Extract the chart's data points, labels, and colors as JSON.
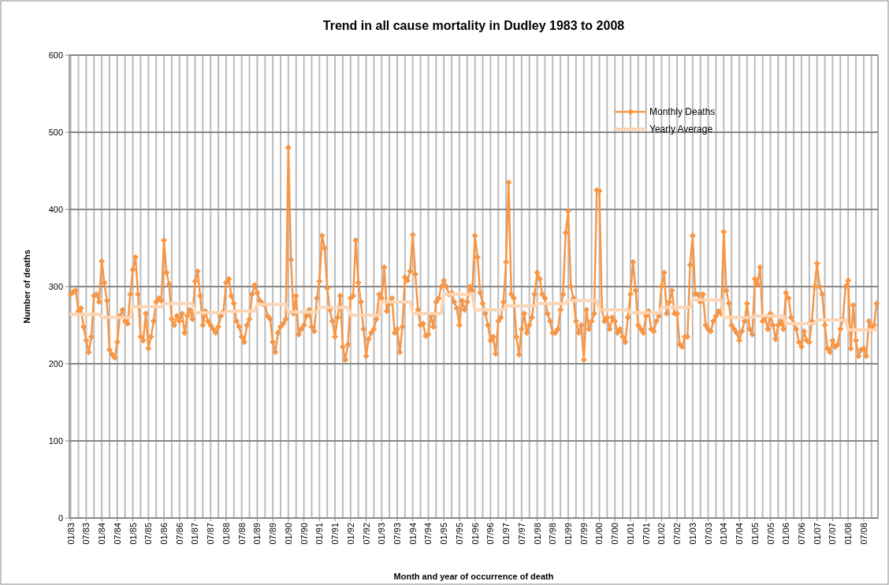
{
  "chart_data": {
    "type": "line",
    "title": "Trend in all cause mortality in Dudley 1983 to 2008",
    "xlabel": "Month and year of occurrence of death",
    "ylabel": "Number of deaths",
    "categories": [
      "01/83",
      null,
      null,
      null,
      null,
      null,
      "07/83",
      null,
      null,
      null,
      null,
      null,
      "01/84",
      null,
      null,
      null,
      null,
      null,
      "07/84",
      null,
      null,
      null,
      null,
      null,
      "01/85",
      null,
      null,
      null,
      null,
      null,
      "07/85",
      null,
      null,
      null,
      null,
      null,
      "01/86",
      null,
      null,
      null,
      null,
      null,
      "07/86",
      null,
      null,
      null,
      null,
      null,
      "01/87",
      null,
      null,
      null,
      null,
      null,
      "07/87",
      null,
      null,
      null,
      null,
      null,
      "01/88",
      null,
      null,
      null,
      null,
      null,
      "07/88",
      null,
      null,
      null,
      null,
      null,
      "01/89",
      null,
      null,
      null,
      null,
      null,
      "07/89",
      null,
      null,
      null,
      null,
      null,
      "01/90",
      null,
      null,
      null,
      null,
      null,
      "07/90",
      null,
      null,
      null,
      null,
      null,
      "01/91",
      null,
      null,
      null,
      null,
      null,
      "07/91",
      null,
      null,
      null,
      null,
      null,
      "01/92",
      null,
      null,
      null,
      null,
      null,
      "07/92",
      null,
      null,
      null,
      null,
      null,
      "01/93",
      null,
      null,
      null,
      null,
      null,
      "07/93",
      null,
      null,
      null,
      null,
      null,
      "01/94",
      null,
      null,
      null,
      null,
      null,
      "07/94",
      null,
      null,
      null,
      null,
      null,
      "01/95",
      null,
      null,
      null,
      null,
      null,
      "07/95",
      null,
      null,
      null,
      null,
      null,
      "01/96",
      null,
      null,
      null,
      null,
      null,
      "07/96",
      null,
      null,
      null,
      null,
      null,
      "01/97",
      null,
      null,
      null,
      null,
      null,
      "07/97",
      null,
      null,
      null,
      null,
      null,
      "01/98",
      null,
      null,
      null,
      null,
      null,
      "07/98",
      null,
      null,
      null,
      null,
      null,
      "01/99",
      null,
      null,
      null,
      null,
      null,
      "07/99",
      null,
      null,
      null,
      null,
      null,
      "01/00",
      null,
      null,
      null,
      null,
      null,
      "07/00",
      null,
      null,
      null,
      null,
      null,
      "01/01",
      null,
      null,
      null,
      null,
      null,
      "07/01",
      null,
      null,
      null,
      null,
      null,
      "01/02",
      null,
      null,
      null,
      null,
      null,
      "07/02",
      null,
      null,
      null,
      null,
      null,
      "01/03",
      null,
      null,
      null,
      null,
      null,
      "07/03",
      null,
      null,
      null,
      null,
      null,
      "01/04",
      null,
      null,
      null,
      null,
      null,
      "07/04",
      null,
      null,
      null,
      null,
      null,
      "01/05",
      null,
      null,
      null,
      null,
      null,
      "07/05",
      null,
      null,
      null,
      null,
      null,
      "01/06",
      null,
      null,
      null,
      null,
      null,
      "07/06",
      null,
      null,
      null,
      null,
      null,
      "01/07",
      null,
      null,
      null,
      null,
      null,
      "07/07",
      null,
      null,
      null,
      null,
      null,
      "01/08",
      null,
      null,
      null,
      null,
      null,
      "07/08",
      null,
      null,
      null,
      null,
      null
    ],
    "series": [
      {
        "name": "Monthly Deaths",
        "color": "#f79646",
        "marker": "diamond",
        "values": [
          290,
          293,
          295,
          268,
          272,
          248,
          230,
          215,
          235,
          288,
          290,
          280,
          333,
          305,
          282,
          218,
          212,
          208,
          228,
          262,
          270,
          255,
          252,
          290,
          322,
          338,
          290,
          235,
          230,
          265,
          220,
          235,
          255,
          280,
          285,
          282,
          360,
          318,
          303,
          258,
          250,
          262,
          255,
          265,
          240,
          262,
          270,
          258,
          307,
          320,
          288,
          250,
          268,
          255,
          250,
          245,
          240,
          248,
          262,
          268,
          305,
          310,
          288,
          278,
          255,
          248,
          235,
          228,
          250,
          258,
          290,
          302,
          292,
          282,
          278,
          276,
          262,
          258,
          228,
          215,
          240,
          248,
          252,
          258,
          480,
          335,
          265,
          288,
          238,
          245,
          250,
          262,
          270,
          248,
          242,
          285,
          307,
          366,
          350,
          298,
          270,
          255,
          235,
          260,
          288,
          222,
          205,
          225,
          285,
          288,
          360,
          305,
          280,
          245,
          210,
          232,
          240,
          245,
          258,
          290,
          285,
          325,
          268,
          278,
          285,
          240,
          245,
          215,
          248,
          312,
          308,
          320,
          367,
          316,
          270,
          250,
          252,
          236,
          238,
          262,
          248,
          280,
          285,
          300,
          308,
          300,
          290,
          292,
          280,
          272,
          250,
          282,
          270,
          280,
          300,
          295,
          366,
          338,
          292,
          278,
          265,
          250,
          230,
          235,
          213,
          255,
          260,
          280,
          332,
          435,
          290,
          285,
          235,
          212,
          245,
          265,
          240,
          250,
          260,
          290,
          318,
          310,
          290,
          285,
          265,
          255,
          240,
          240,
          245,
          270,
          290,
          370,
          398,
          300,
          285,
          255,
          240,
          250,
          205,
          270,
          245,
          255,
          265,
          425,
          424,
          270,
          255,
          260,
          245,
          260,
          255,
          240,
          245,
          235,
          228,
          260,
          290,
          332,
          295,
          250,
          245,
          240,
          262,
          268,
          245,
          242,
          255,
          262,
          300,
          318,
          265,
          280,
          295,
          265,
          265,
          225,
          222,
          235,
          235,
          328,
          366,
          290,
          290,
          280,
          290,
          250,
          245,
          242,
          255,
          262,
          268,
          265,
          371,
          295,
          278,
          250,
          245,
          240,
          230,
          242,
          255,
          278,
          245,
          238,
          310,
          303,
          325,
          255,
          260,
          245,
          265,
          250,
          232,
          250,
          255,
          245,
          292,
          285,
          260,
          252,
          245,
          228,
          222,
          242,
          230,
          228,
          255,
          300,
          330,
          300,
          290,
          250,
          220,
          215,
          230,
          222,
          225,
          245,
          258,
          300,
          308,
          220,
          276,
          230,
          210,
          218,
          220,
          210,
          255,
          245,
          250,
          278
        ]
      },
      {
        "name": "Yearly Average",
        "color": "#fcd5b5",
        "marker": "none",
        "values": [
          264,
          264,
          264,
          264,
          264,
          264,
          264,
          264,
          264,
          264,
          264,
          264,
          260,
          260,
          260,
          260,
          260,
          260,
          260,
          260,
          260,
          260,
          260,
          260,
          274,
          274,
          274,
          274,
          274,
          274,
          274,
          274,
          274,
          274,
          274,
          274,
          278,
          278,
          278,
          278,
          278,
          278,
          278,
          278,
          278,
          278,
          278,
          278,
          266,
          266,
          266,
          266,
          266,
          266,
          266,
          266,
          266,
          266,
          266,
          266,
          268,
          268,
          268,
          268,
          268,
          268,
          268,
          268,
          268,
          268,
          268,
          268,
          277,
          277,
          277,
          277,
          277,
          277,
          277,
          277,
          277,
          277,
          277,
          277,
          267,
          267,
          267,
          267,
          267,
          267,
          267,
          267,
          267,
          267,
          267,
          267,
          273,
          273,
          273,
          273,
          273,
          273,
          273,
          273,
          273,
          273,
          273,
          273,
          263,
          263,
          263,
          263,
          263,
          263,
          263,
          263,
          263,
          263,
          263,
          263,
          280,
          280,
          280,
          280,
          280,
          280,
          280,
          280,
          280,
          280,
          280,
          280,
          265,
          265,
          265,
          265,
          265,
          265,
          265,
          265,
          265,
          265,
          265,
          265,
          290,
          290,
          290,
          290,
          290,
          290,
          290,
          290,
          290,
          290,
          290,
          290,
          270,
          270,
          270,
          270,
          270,
          270,
          270,
          270,
          270,
          270,
          270,
          270,
          275,
          275,
          275,
          275,
          275,
          275,
          275,
          275,
          275,
          275,
          275,
          275,
          278,
          278,
          278,
          278,
          278,
          278,
          278,
          278,
          278,
          278,
          278,
          278,
          282,
          282,
          282,
          282,
          282,
          282,
          282,
          282,
          282,
          282,
          282,
          282,
          270,
          270,
          270,
          270,
          270,
          270,
          270,
          270,
          270,
          270,
          270,
          270,
          266,
          266,
          266,
          266,
          266,
          266,
          266,
          266,
          266,
          266,
          266,
          266,
          273,
          273,
          273,
          273,
          273,
          273,
          273,
          273,
          273,
          273,
          273,
          273,
          283,
          283,
          283,
          283,
          283,
          283,
          283,
          283,
          283,
          283,
          283,
          283,
          260,
          260,
          260,
          260,
          260,
          260,
          260,
          260,
          260,
          260,
          260,
          260,
          262,
          262,
          262,
          262,
          262,
          262,
          262,
          262,
          262,
          262,
          262,
          262,
          252,
          252,
          252,
          252,
          252,
          252,
          252,
          252,
          252,
          252,
          252,
          252,
          257,
          257,
          257,
          257,
          257,
          257,
          257,
          257,
          257,
          257,
          257,
          257,
          244,
          244,
          244,
          244,
          244,
          244,
          244,
          244,
          244,
          244,
          244,
          244
        ]
      }
    ],
    "ylim": [
      0,
      600
    ],
    "yticks": [
      0,
      100,
      200,
      300,
      400,
      500,
      600
    ],
    "grid": true,
    "legend": "top right",
    "line_style": "solid"
  }
}
